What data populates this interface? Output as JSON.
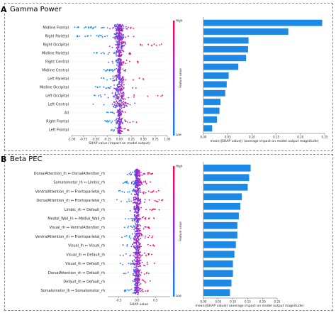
{
  "panels": [
    {
      "letter": "A",
      "title": "Gamma Power"
    },
    {
      "letter": "B",
      "title": "Beta PEC"
    }
  ],
  "colorbar": {
    "high": "High",
    "low": "Low",
    "label": "Feature value"
  },
  "chart_data": [
    {
      "type": "scatter",
      "title": "Gamma Power",
      "xlabel": "SHAP value (impact on model output)",
      "ylabel": "",
      "xlim": [
        -1.0,
        1.0
      ],
      "xticks": [
        "-1.00",
        "-0.75",
        "-0.50",
        "-0.25",
        "0.00",
        "0.25",
        "0.50",
        "0.75",
        "1.00"
      ],
      "features": [
        "Midline Frontal",
        "Right Parietal",
        "Right Occipital",
        "Midline Parietal",
        "Right Central",
        "Midline Central",
        "Left Parietal",
        "Midline Occipital",
        "Left Occipital",
        "Left Central",
        "All",
        "Right Frontal",
        "Left Frontal"
      ],
      "spread": [
        [
          -0.95,
          0.3
        ],
        [
          -0.9,
          0.3
        ],
        [
          -0.55,
          0.9
        ],
        [
          -0.55,
          0.3
        ],
        [
          -0.3,
          0.45
        ],
        [
          -0.35,
          0.15
        ],
        [
          -0.45,
          0.7
        ],
        [
          -0.5,
          0.35
        ],
        [
          -0.55,
          0.9
        ],
        [
          -0.6,
          0.6
        ],
        [
          -0.3,
          0.15
        ],
        [
          -0.3,
          0.45
        ],
        [
          -0.2,
          0.2
        ]
      ],
      "colorbar": "Feature value"
    },
    {
      "type": "bar",
      "title": "",
      "xlabel": "mean(|SHAP value|) (average impact on model output magnitude)",
      "ylabel": "",
      "xlim": [
        0,
        0.25
      ],
      "xticks": [
        "0.00",
        "0.05",
        "0.10",
        "0.15",
        "0.20",
        "0.25"
      ],
      "categories": [
        "Midline Frontal",
        "Right Parietal",
        "Right Occipital",
        "Midline Parietal",
        "Right Central",
        "Midline Central",
        "Left Parietal",
        "Midline Occipital",
        "Left Occipital",
        "Left Central",
        "All",
        "Right Frontal",
        "Left Frontal"
      ],
      "values": [
        0.245,
        0.175,
        0.093,
        0.092,
        0.088,
        0.072,
        0.052,
        0.048,
        0.045,
        0.035,
        0.033,
        0.028,
        0.018
      ],
      "color": "#1e88e5"
    },
    {
      "type": "scatter",
      "title": "Beta PEC",
      "xlabel": "SHAP value",
      "ylabel": "",
      "xlim": [
        -0.8,
        0.9
      ],
      "xticks": [
        "-0.5",
        "0.0",
        "0.5"
      ],
      "features": [
        "DorsalAttention_lh ↔ DorsalAttention_rh",
        "Somatomotor_lh ↔ Limbic_rh",
        "VentralAttention_rh ↔ Frontoparietal_rh",
        "DorsalAttention_rh ↔ Frontoparietal_rh",
        "Limbic_rh ↔ Default_rh",
        "Medial_Wall_lh ↔ Medial_Wall_rh",
        "Visual_rh ↔ VentralAttention_rh",
        "VentralAttention_rh ↔ Frontoparietal_rh",
        "Visual_lh ↔ Visual_rh",
        "Visual_lh ↔ Default_lh",
        "Visual_rh ↔ Default_rh",
        "DorsalAttention_rh ↔ Default_rh",
        "Default_lh ↔ Default_rh",
        "Somatomotor_lh ↔ Somatomotor_rh"
      ],
      "spread": [
        [
          -0.3,
          0.5
        ],
        [
          -0.4,
          0.4
        ],
        [
          -0.5,
          0.6
        ],
        [
          -0.55,
          0.7
        ],
        [
          -0.3,
          0.6
        ],
        [
          -0.35,
          0.5
        ],
        [
          -0.35,
          0.4
        ],
        [
          -0.5,
          0.55
        ],
        [
          -0.4,
          0.6
        ],
        [
          -0.5,
          0.4
        ],
        [
          -0.5,
          0.5
        ],
        [
          -0.4,
          0.4
        ],
        [
          -0.3,
          0.4
        ],
        [
          -0.35,
          0.3
        ]
      ],
      "colorbar": "Feature value"
    },
    {
      "type": "bar",
      "title": "",
      "xlabel": "mean(|SHAP value|) (average impact on model output magnitude)",
      "ylabel": "",
      "xlim": [
        0,
        0.25
      ],
      "xticks": [
        "0.00",
        "0.05",
        "0.10",
        "0.15",
        "0.20",
        "0.25"
      ],
      "categories": [
        "DorsalAttention_lh ↔ DorsalAttention_rh",
        "Somatomotor_lh ↔ Limbic_rh",
        "VentralAttention_rh ↔ Frontoparietal_rh",
        "DorsalAttention_rh ↔ Frontoparietal_rh",
        "Limbic_rh ↔ Default_rh",
        "Medial_Wall_lh ↔ Medial_Wall_rh",
        "Visual_rh ↔ VentralAttention_rh",
        "VentralAttention_rh ↔ Frontoparietal_rh",
        "Visual_lh ↔ Visual_rh",
        "Visual_lh ↔ Default_lh",
        "Visual_rh ↔ Default_rh",
        "DorsalAttention_rh ↔ Default_rh",
        "Default_lh ↔ Default_rh",
        "Somatomotor_lh ↔ Somatomotor_rh"
      ],
      "values": [
        0.16,
        0.155,
        0.15,
        0.13,
        0.125,
        0.12,
        0.115,
        0.115,
        0.11,
        0.105,
        0.1,
        0.1,
        0.095,
        0.09
      ],
      "color": "#1e88e5"
    }
  ]
}
